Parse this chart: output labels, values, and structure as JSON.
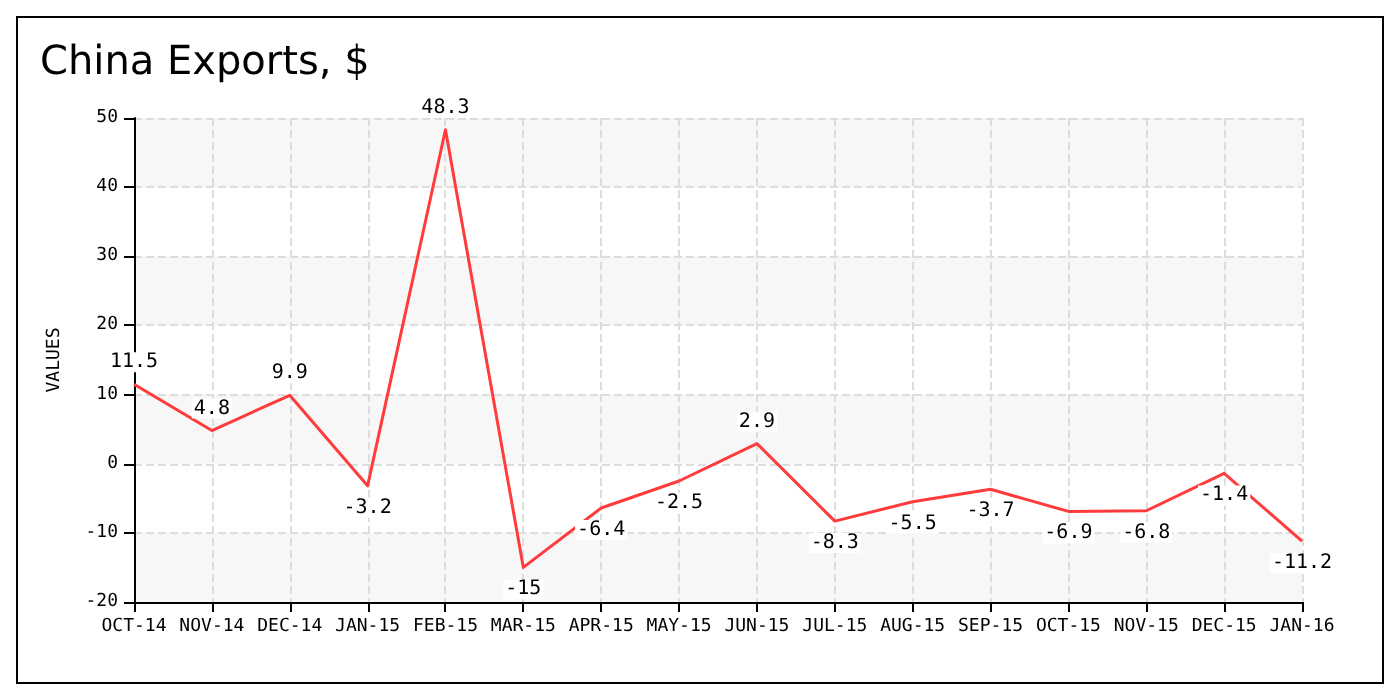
{
  "chart_data": {
    "type": "line",
    "title": "China Exports, $",
    "ylabel": "VALUES",
    "categories": [
      "OCT-14",
      "NOV-14",
      "DEC-14",
      "JAN-15",
      "FEB-15",
      "MAR-15",
      "APR-15",
      "MAY-15",
      "JUN-15",
      "JUL-15",
      "AUG-15",
      "SEP-15",
      "OCT-15",
      "NOV-15",
      "DEC-15",
      "JAN-16"
    ],
    "series": [
      {
        "color": "#ff3b3b",
        "values": [
          11.5,
          4.8,
          9.9,
          -3.2,
          48.3,
          -15,
          -6.4,
          -2.5,
          2.9,
          -8.3,
          -5.5,
          -3.7,
          -6.9,
          -6.8,
          -1.4,
          -11.2
        ]
      }
    ],
    "ylim": [
      -20,
      50
    ],
    "yticks": [
      -20,
      -10,
      0,
      10,
      20,
      30,
      40,
      50
    ],
    "grid": true,
    "data_labels": true,
    "marker": "none"
  }
}
